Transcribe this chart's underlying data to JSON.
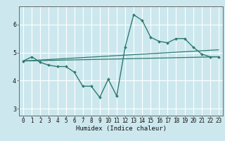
{
  "xlabel": "Humidex (Indice chaleur)",
  "background_color": "#cce8ee",
  "grid_color": "#ffffff",
  "line_color": "#2e7b70",
  "xlim": [
    -0.5,
    23.5
  ],
  "ylim": [
    2.75,
    6.65
  ],
  "xticks": [
    0,
    1,
    2,
    3,
    4,
    5,
    6,
    7,
    8,
    9,
    10,
    11,
    12,
    13,
    14,
    15,
    16,
    17,
    18,
    19,
    20,
    21,
    22,
    23
  ],
  "yticks": [
    3,
    4,
    5,
    6
  ],
  "series0_x": [
    0,
    1,
    2,
    3,
    4,
    5,
    6,
    7,
    8,
    9,
    10,
    11,
    12,
    13,
    14,
    15,
    16,
    17,
    18,
    19,
    20,
    21,
    22,
    23
  ],
  "series0_y": [
    4.7,
    4.85,
    4.65,
    4.55,
    4.5,
    4.5,
    4.3,
    3.8,
    3.8,
    3.4,
    4.05,
    3.45,
    5.2,
    6.35,
    6.15,
    5.55,
    5.4,
    5.35,
    5.5,
    5.5,
    5.2,
    4.95,
    4.85,
    4.85
  ],
  "series1_x": [
    0,
    23
  ],
  "series1_y": [
    4.7,
    4.85
  ],
  "series2_x": [
    0,
    23
  ],
  "series2_y": [
    4.7,
    5.1
  ],
  "xlabel_fontsize": 6.5,
  "tick_fontsize": 5.5
}
